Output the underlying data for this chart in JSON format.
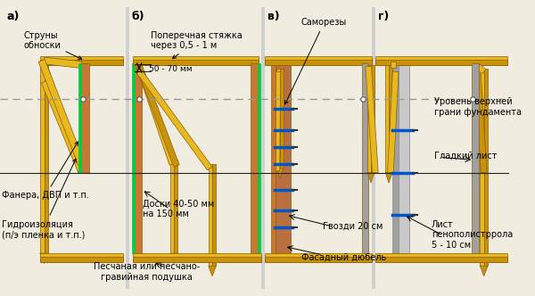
{
  "bg_color": "#f0ede0",
  "wood_colors": [
    "#d4a017",
    "#c8920a",
    "#b8800a",
    "#e8b820"
  ],
  "wood_dark": "#8B5E0A",
  "wood_mid": "#C8920A",
  "wood_light": "#E8B820",
  "wood_orange": "#D4821A",
  "plywood_color": "#C87832",
  "green_line": "#00CC44",
  "blue_color": "#0055CC",
  "gray_color": "#A0A0A0",
  "text_color": "#000000",
  "dashed_color": "#888888",
  "ground_color": "#C8C8C8",
  "labels": {
    "a": "а)",
    "b": "б)",
    "v": "в)",
    "g": "г)",
    "struny": "Струны\nобноски",
    "poperechnaya": "Поперечная стяжка\nчерез 0,5 - 1 м",
    "mm50_70": "50 - 70 мм",
    "fanera": "Фанера, ДВП и т.п.",
    "gidro": "Гидроизоляция\n(п/э пленка и т.п.)",
    "doski": "Доски 40-50 мм\nна 150 мм",
    "pesok": "Песчаная или песчано-\nгравийная подушка",
    "samorezi": "Саморезы",
    "gvozdi": "Гвозди 20 см",
    "fasadny": "Фасадный дюбель",
    "uroven": "Уровень верхней\nграни фундамента",
    "gladky": "Гладкий лист",
    "list_peno": "Лист\nпенополистррола\n5 - 10 см"
  }
}
